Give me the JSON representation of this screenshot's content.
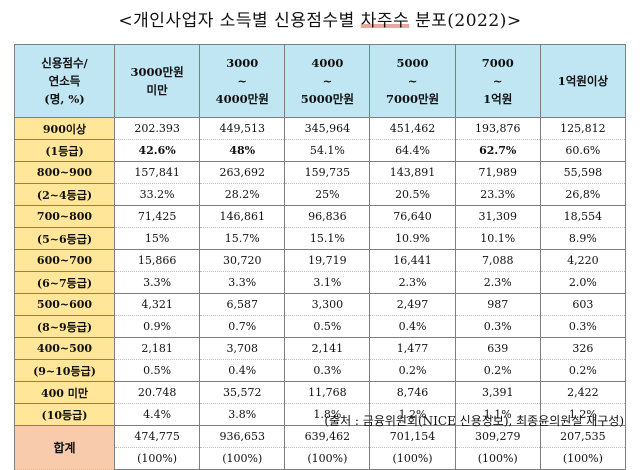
{
  "title": {
    "prefix": "<개인사업자 소득별 신용점수별 ",
    "highlight": "차주수",
    "suffix": " 분포(2022)>"
  },
  "header": {
    "corner": [
      "신용점수/",
      "연소득",
      "(명, %)"
    ],
    "cols": [
      [
        "3000만원",
        "미만"
      ],
      [
        "3000",
        "~",
        "4000만원"
      ],
      [
        "4000",
        "~",
        "5000만원"
      ],
      [
        "5000",
        "~",
        "7000만원"
      ],
      [
        "7000",
        "~",
        "1억원"
      ],
      [
        "1억원이상"
      ]
    ]
  },
  "rows": [
    {
      "label": [
        "900이상",
        "(1등급)"
      ],
      "counts": [
        "202.393",
        "449,513",
        "345,964",
        "451,462",
        "193,876",
        "125,812"
      ],
      "pcts": [
        "42.6%",
        "48%",
        "54.1%",
        "64.4%",
        "62.7%",
        "60.6%"
      ],
      "bold": [
        true,
        true,
        false,
        false,
        true,
        false
      ]
    },
    {
      "label": [
        "800~900",
        "(2~4등급)"
      ],
      "counts": [
        "157,841",
        "263,692",
        "159,735",
        "143,891",
        "71,989",
        "55,598"
      ],
      "pcts": [
        "33.2%",
        "28.2%",
        "25%",
        "20.5%",
        "23.3%",
        "26,8%"
      ],
      "bold": [
        false,
        false,
        false,
        false,
        false,
        false
      ]
    },
    {
      "label": [
        "700~800",
        "(5~6등급)"
      ],
      "counts": [
        "71,425",
        "146,861",
        "96,836",
        "76,640",
        "31,309",
        "18,554"
      ],
      "pcts": [
        "15%",
        "15.7%",
        "15.1%",
        "10.9%",
        "10.1%",
        "8.9%"
      ],
      "bold": [
        false,
        false,
        false,
        false,
        false,
        false
      ]
    },
    {
      "label": [
        "600~700",
        "(6~7등급)"
      ],
      "counts": [
        "15,866",
        "30,720",
        "19,719",
        "16,441",
        "7,088",
        "4,220"
      ],
      "pcts": [
        "3.3%",
        "3.3%",
        "3.1%",
        "2.3%",
        "2.3%",
        "2.0%"
      ],
      "bold": [
        false,
        false,
        false,
        false,
        false,
        false
      ]
    },
    {
      "label": [
        "500~600",
        "(8~9등급)"
      ],
      "counts": [
        "4,321",
        "6,587",
        "3,300",
        "2,497",
        "987",
        "603"
      ],
      "pcts": [
        "0.9%",
        "0.7%",
        "0.5%",
        "0.4%",
        "0.3%",
        "0.3%"
      ],
      "bold": [
        false,
        false,
        false,
        false,
        false,
        false
      ]
    },
    {
      "label": [
        "400~500",
        "(9~10등급)"
      ],
      "counts": [
        "2,181",
        "3,708",
        "2,141",
        "1,477",
        "639",
        "326"
      ],
      "pcts": [
        "0.5%",
        "0.4%",
        "0.3%",
        "0.2%",
        "0.2%",
        "0.2%"
      ],
      "bold": [
        false,
        false,
        false,
        false,
        false,
        false
      ]
    },
    {
      "label": [
        "400 미만",
        "(10등급)"
      ],
      "counts": [
        "20.748",
        "35,572",
        "11,768",
        "8,746",
        "3,391",
        "2,422"
      ],
      "pcts": [
        "4.4%",
        "3.8%",
        "1.8%",
        "1.2%",
        "1.1%",
        "1.2%"
      ],
      "bold": [
        false,
        false,
        false,
        false,
        false,
        false
      ]
    }
  ],
  "total": {
    "label": "합계",
    "counts": [
      "474,775",
      "936,653",
      "639,462",
      "701,154",
      "309,279",
      "207,535"
    ],
    "pcts": [
      "(100%)",
      "(100%)",
      "(100%)",
      "(100%)",
      "(100%)",
      "(100%)"
    ]
  },
  "source": "(출처 : 금융위원회(NICE 신용정보), 최종윤의원실 재구성)"
}
